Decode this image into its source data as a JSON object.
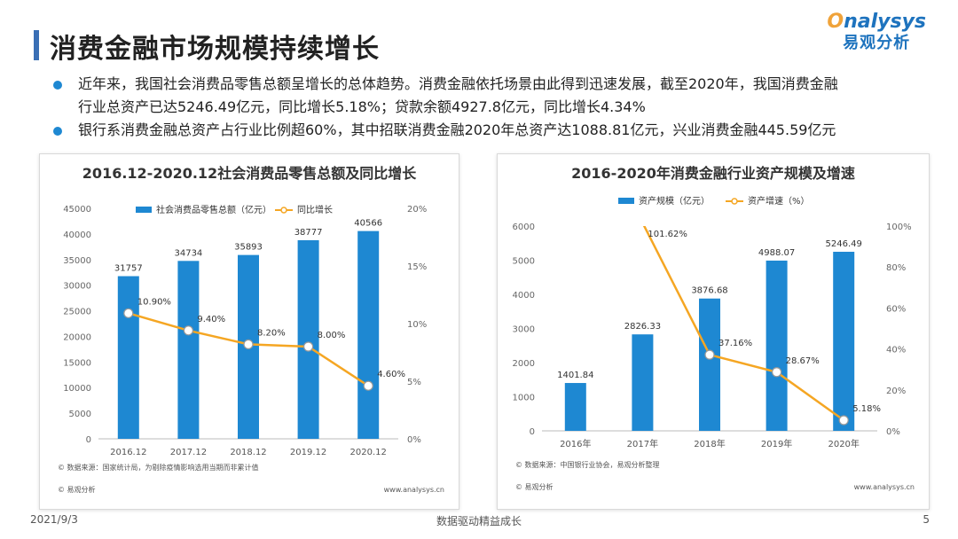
{
  "header": {
    "title": "消费金融市场规模持续增长",
    "logo_en": "nalysys",
    "logo_cn": "易观分析"
  },
  "bullets": [
    {
      "line1": "近年来，我国社会消费品零售总额呈增长的总体趋势。消费金融依托场景由此得到迅速发展，截至2020年，我国消费金融",
      "line2": "行业总资产已达5246.49亿元，同比增长5.18%；贷款余额4927.8亿元，同比增长4.34%"
    },
    {
      "line1": "银行系消费金融总资产占行业比例超60%，其中招联消费金融2020年总资产达1088.81亿元，兴业消费金融445.59亿元",
      "line2": ""
    }
  ],
  "colors": {
    "bar": "#1e88d2",
    "line": "#f5a623",
    "accent": "#3a6fb5"
  },
  "chart_data": [
    {
      "type": "bar",
      "title": "2016.12-2020.12社会消费品零售总额及同比增长",
      "categories": [
        "2016.12",
        "2017.12",
        "2018.12",
        "2019.12",
        "2020.12"
      ],
      "series": [
        {
          "name": "社会消费品零售总额（亿元）",
          "type": "bar",
          "axis": "left",
          "values": [
            31757,
            34734,
            35893,
            38777,
            40566
          ]
        },
        {
          "name": "同比增长",
          "type": "line",
          "axis": "right",
          "values": [
            10.9,
            9.4,
            8.2,
            8.0,
            4.6
          ]
        }
      ],
      "bar_labels": [
        "31757",
        "34734",
        "35893",
        "38777",
        "40566"
      ],
      "line_labels": [
        "10.90%",
        "9.40%",
        "8.20%",
        "8.00%",
        "4.60%"
      ],
      "y_left": {
        "ylim": [
          0,
          45000
        ],
        "ticks": [
          "0",
          "5000",
          "10000",
          "15000",
          "20000",
          "25000",
          "30000",
          "35000",
          "40000",
          "45000"
        ]
      },
      "y_right": {
        "ylim": [
          0,
          20
        ],
        "ticks": [
          "0%",
          "5%",
          "10%",
          "15%",
          "20%"
        ]
      },
      "legend_position": "top",
      "grid": false,
      "source": "© 数据来源：国家统计局，为剔除疫情影响选用当期而非累计值",
      "brand": "© 易观分析",
      "url": "www.analysys.cn"
    },
    {
      "type": "bar",
      "title": "2016-2020年消费金融行业资产规模及增速",
      "categories": [
        "2016年",
        "2017年",
        "2018年",
        "2019年",
        "2020年"
      ],
      "series": [
        {
          "name": "资产规模（亿元）",
          "type": "bar",
          "axis": "left",
          "values": [
            1401.84,
            2826.33,
            3876.68,
            4988.07,
            5246.49
          ]
        },
        {
          "name": "资产增速（%）",
          "type": "line",
          "axis": "right",
          "values": [
            null,
            101.62,
            37.16,
            28.67,
            5.18
          ]
        }
      ],
      "bar_labels": [
        "1401.84",
        "2826.33",
        "3876.68",
        "4988.07",
        "5246.49"
      ],
      "line_labels": [
        null,
        "101.62%",
        "37.16%",
        "28.67%",
        "5.18%"
      ],
      "y_left": {
        "ylim": [
          0,
          6000
        ],
        "ticks": [
          "0",
          "1000",
          "2000",
          "3000",
          "4000",
          "5000",
          "6000"
        ]
      },
      "y_right": {
        "ylim": [
          0,
          100
        ],
        "ticks": [
          "0%",
          "20%",
          "40%",
          "60%",
          "80%",
          "100%"
        ]
      },
      "legend_position": "top",
      "grid": false,
      "source": "© 数据来源：中国银行业协会，易观分析整理",
      "brand": "© 易观分析",
      "url": "www.analysys.cn"
    }
  ],
  "footer": {
    "date": "2021/9/3",
    "slogan": "数据驱动精益成长",
    "page": "5"
  }
}
